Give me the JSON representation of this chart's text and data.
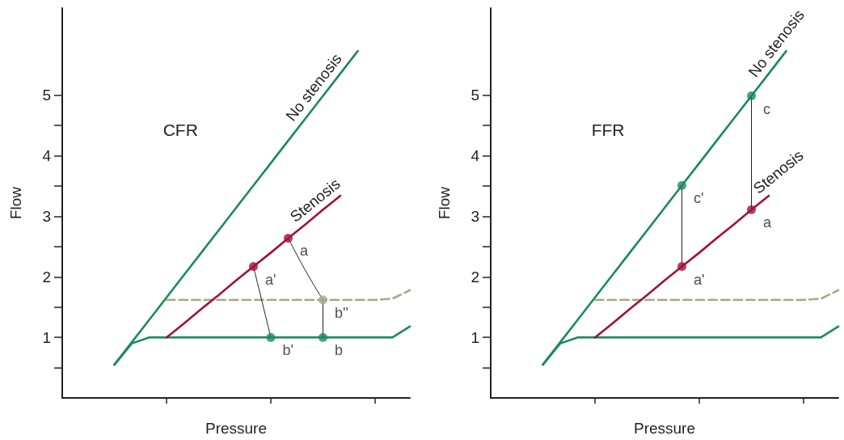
{
  "chart_data": [
    {
      "type": "line",
      "annotations": [
        "CFR"
      ],
      "xlabel": "Pressure",
      "ylabel": "Flow",
      "legend": false,
      "grid": false,
      "tick_labels": "y",
      "marker": "none",
      "ylim": [
        0,
        6.44
      ],
      "yticks": [
        {
          "value": 0.5,
          "label": null
        },
        1,
        {
          "value": 1.5,
          "label": null
        },
        2,
        {
          "value": 2.5,
          "label": null
        },
        3,
        {
          "value": 3.5,
          "label": null
        },
        4,
        {
          "value": 4.5,
          "label": null
        },
        5
      ],
      "categories": [
        null,
        null,
        null,
        null,
        null,
        null,
        null,
        null,
        null,
        null,
        null,
        null,
        null,
        null,
        null,
        null,
        null,
        null,
        null,
        null,
        null
      ],
      "series": [
        {
          "name": "No stenosis",
          "color": "#1a8a5c",
          "values": [
            null,
            null,
            null,
            0.55,
            0.92,
            1.29,
            1.66,
            2.03,
            2.4,
            2.77,
            3.14,
            3.51,
            3.88,
            4.25,
            4.62,
            4.99,
            5.36,
            5.73,
            null,
            null,
            null
          ]
        },
        {
          "color": "#1a8a5c",
          "values": [
            null,
            null,
            null,
            0.55,
            0.9,
            1,
            1,
            1,
            1,
            1,
            1,
            1,
            1,
            1,
            1,
            1,
            1,
            1,
            1,
            1,
            1.18
          ]
        },
        {
          "color": "#a8a88a",
          "line_style": "dashed",
          "values": [
            null,
            null,
            null,
            null,
            null,
            null,
            1.62,
            1.62,
            1.62,
            1.62,
            1.62,
            1.62,
            1.62,
            1.62,
            1.62,
            1.62,
            1.62,
            1.62,
            1.62,
            1.64,
            1.78
          ]
        },
        {
          "name": "Stenosis",
          "color": "#a3103f",
          "values": [
            null,
            null,
            null,
            null,
            null,
            null,
            1,
            1.23,
            1.47,
            1.7,
            1.94,
            2.17,
            2.4,
            2.64,
            2.87,
            3.11,
            3.34,
            null,
            null,
            null,
            null
          ]
        },
        {
          "color": "#222222",
          "values": [
            null,
            null,
            null,
            null,
            null,
            null,
            null,
            null,
            null,
            null,
            null,
            null,
            null,
            2.64,
            2.1,
            1.62,
            null,
            null,
            null,
            null,
            null
          ]
        },
        {
          "color": "#222222",
          "values": [
            null,
            null,
            null,
            null,
            null,
            null,
            null,
            null,
            null,
            null,
            null,
            2.17,
            1,
            null,
            null,
            null,
            null,
            null,
            null,
            null,
            null
          ]
        },
        {
          "type": "scatter",
          "marker": "circle",
          "name": "a",
          "color": "#a3103f",
          "values": [
            null,
            null,
            null,
            null,
            null,
            null,
            null,
            null,
            null,
            null,
            null,
            null,
            null,
            2.64,
            null,
            null,
            null,
            null,
            null,
            null,
            null
          ]
        },
        {
          "type": "scatter",
          "marker": "circle",
          "name": "a'",
          "color": "#a3103f",
          "values": [
            null,
            null,
            null,
            null,
            null,
            null,
            null,
            null,
            null,
            null,
            null,
            2.17,
            null,
            null,
            null,
            null,
            null,
            null,
            null,
            null,
            null
          ]
        },
        {
          "type": "scatter",
          "marker": "circle",
          "name": "b'",
          "color": "#1a8a5c",
          "values": [
            null,
            null,
            null,
            null,
            null,
            null,
            null,
            null,
            null,
            null,
            null,
            null,
            1,
            null,
            null,
            null,
            null,
            null,
            null,
            null,
            null
          ]
        },
        {
          "type": "scatter",
          "marker": "circle",
          "name": "b''",
          "color": "#a8a88a",
          "values": [
            null,
            null,
            null,
            null,
            null,
            null,
            null,
            null,
            null,
            null,
            null,
            null,
            null,
            null,
            null,
            1.62,
            null,
            null,
            null,
            null,
            null
          ]
        },
        {
          "type": "scatter",
          "marker": "circle",
          "name": "b",
          "color": "#1a8a5c",
          "values": [
            null,
            null,
            null,
            null,
            null,
            null,
            null,
            null,
            null,
            null,
            null,
            null,
            null,
            null,
            null,
            1,
            null,
            null,
            null,
            null,
            null
          ]
        }
      ]
    },
    {
      "type": "line",
      "annotations": [
        "FFR"
      ],
      "xlabel": "Pressure",
      "ylabel": "Flow",
      "legend": false,
      "grid": false,
      "tick_labels": "y",
      "marker": "none",
      "ylim": [
        0,
        6.44
      ],
      "yticks": [
        {
          "value": 0.5,
          "label": null
        },
        1,
        {
          "value": 1.5,
          "label": null
        },
        2,
        {
          "value": 2.5,
          "label": null
        },
        3,
        {
          "value": 3.5,
          "label": null
        },
        4,
        {
          "value": 4.5,
          "label": null
        },
        5
      ],
      "categories": [
        null,
        null,
        null,
        null,
        null,
        null,
        null,
        null,
        null,
        null,
        null,
        null,
        null,
        null,
        null,
        null,
        null,
        null,
        null,
        null,
        null
      ],
      "series": [
        {
          "name": "No stenosis",
          "color": "#1a8a5c",
          "values": [
            null,
            null,
            null,
            0.55,
            0.92,
            1.29,
            1.66,
            2.03,
            2.4,
            2.77,
            3.14,
            3.51,
            3.88,
            4.25,
            4.62,
            4.99,
            5.36,
            5.73,
            null,
            null,
            null
          ]
        },
        {
          "color": "#1a8a5c",
          "values": [
            null,
            null,
            null,
            0.55,
            0.9,
            1,
            1,
            1,
            1,
            1,
            1,
            1,
            1,
            1,
            1,
            1,
            1,
            1,
            1,
            1,
            1.18
          ]
        },
        {
          "color": "#a8a88a",
          "line_style": "dashed",
          "values": [
            null,
            null,
            null,
            null,
            null,
            null,
            1.62,
            1.62,
            1.62,
            1.62,
            1.62,
            1.62,
            1.62,
            1.62,
            1.62,
            1.62,
            1.62,
            1.62,
            1.62,
            1.64,
            1.78
          ]
        },
        {
          "name": "Stenosis",
          "color": "#a3103f",
          "values": [
            null,
            null,
            null,
            null,
            null,
            null,
            1,
            1.23,
            1.47,
            1.7,
            1.94,
            2.17,
            2.4,
            2.64,
            2.87,
            3.11,
            3.34,
            null,
            null,
            null,
            null
          ]
        },
        {
          "type": "scatter",
          "marker": "circle",
          "name": "c",
          "color": "#1a8a5c",
          "values": [
            null,
            null,
            null,
            null,
            null,
            null,
            null,
            null,
            null,
            null,
            null,
            null,
            null,
            null,
            null,
            4.99,
            null,
            null,
            null,
            null,
            null
          ]
        },
        {
          "type": "scatter",
          "marker": "circle",
          "name": "c'",
          "color": "#1a8a5c",
          "values": [
            null,
            null,
            null,
            null,
            null,
            null,
            null,
            null,
            null,
            null,
            null,
            3.51,
            null,
            null,
            null,
            null,
            null,
            null,
            null,
            null,
            null
          ]
        },
        {
          "type": "scatter",
          "marker": "circle",
          "name": "a",
          "color": "#a3103f",
          "values": [
            null,
            null,
            null,
            null,
            null,
            null,
            null,
            null,
            null,
            null,
            null,
            null,
            null,
            null,
            null,
            3.11,
            null,
            null,
            null,
            null,
            null
          ]
        },
        {
          "type": "scatter",
          "marker": "circle",
          "name": "a'",
          "color": "#a3103f",
          "values": [
            null,
            null,
            null,
            null,
            null,
            null,
            null,
            null,
            null,
            null,
            null,
            2.17,
            null,
            null,
            null,
            null,
            null,
            null,
            null,
            null,
            null
          ]
        }
      ]
    }
  ]
}
